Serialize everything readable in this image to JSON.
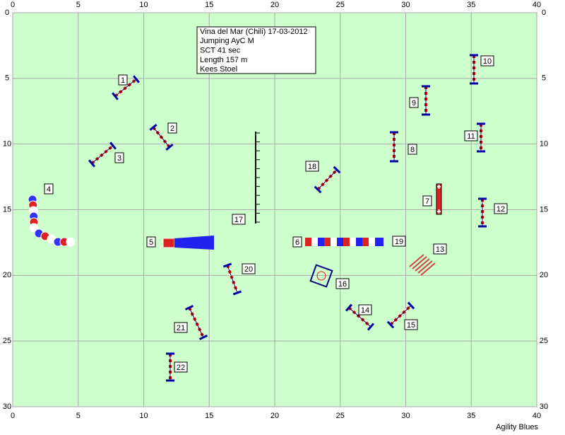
{
  "x_axis": {
    "ticks": [
      0,
      5,
      10,
      15,
      20,
      25,
      30,
      35,
      40
    ]
  },
  "y_axis": {
    "ticks": [
      0,
      5,
      10,
      15,
      20,
      25,
      30
    ]
  },
  "course_info": {
    "lines": [
      "Vina del Mar (Chili) 17-03-2012",
      "Jumping AyC M",
      "SCT 41 sec",
      "Length 157 m",
      "Kees Stoel"
    ]
  },
  "obstacles": [
    1,
    2,
    3,
    4,
    5,
    6,
    7,
    8,
    9,
    10,
    11,
    12,
    13,
    14,
    15,
    16,
    17,
    18,
    19,
    20,
    21,
    22
  ],
  "footer": "Agility Blues"
}
